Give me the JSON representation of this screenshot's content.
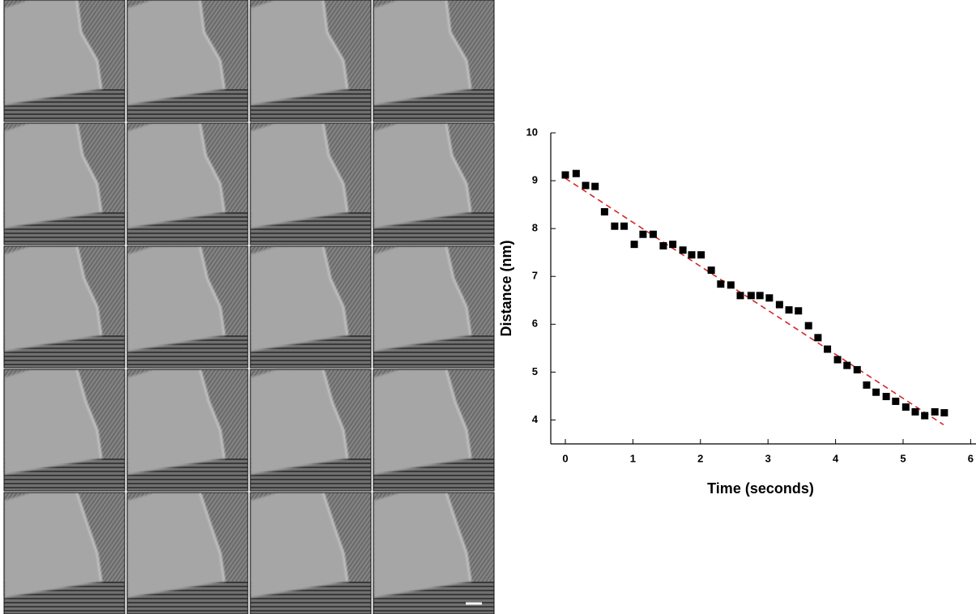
{
  "chart_data": {
    "type": "scatter",
    "xlabel": "Time (seconds)",
    "ylabel": "Distance (nm)",
    "x": [
      0,
      0.16,
      0.3,
      0.44,
      0.58,
      0.73,
      0.87,
      1.02,
      1.15,
      1.3,
      1.45,
      1.59,
      1.74,
      1.87,
      2.01,
      2.16,
      2.3,
      2.45,
      2.59,
      2.75,
      2.88,
      3.02,
      3.17,
      3.31,
      3.45,
      3.6,
      3.74,
      3.88,
      4.03,
      4.17,
      4.32,
      4.46,
      4.6,
      4.75,
      4.89,
      5.04,
      5.18,
      5.32,
      5.47,
      5.61
    ],
    "values": [
      9.12,
      9.15,
      8.9,
      8.88,
      8.35,
      8.05,
      8.05,
      7.67,
      7.88,
      7.88,
      7.64,
      7.67,
      7.55,
      7.45,
      7.45,
      7.13,
      6.84,
      6.82,
      6.6,
      6.6,
      6.6,
      6.55,
      6.41,
      6.3,
      6.28,
      5.97,
      5.72,
      5.48,
      5.26,
      5.14,
      5.05,
      4.73,
      4.58,
      4.49,
      4.39,
      4.27,
      4.17,
      4.09,
      4.17,
      4.15
    ],
    "color": "#000000",
    "trend_line": {
      "x": [
        0,
        5.6
      ],
      "values": [
        9.05,
        3.9
      ],
      "color": "#d62728",
      "dashed": true
    },
    "xlim": [
      0,
      6
    ],
    "ylim": [
      3.5,
      10
    ],
    "xticks": [
      0,
      1,
      2,
      3,
      4,
      5,
      6
    ],
    "yticks": [
      4,
      5,
      6,
      7,
      8,
      9,
      10
    ]
  }
}
